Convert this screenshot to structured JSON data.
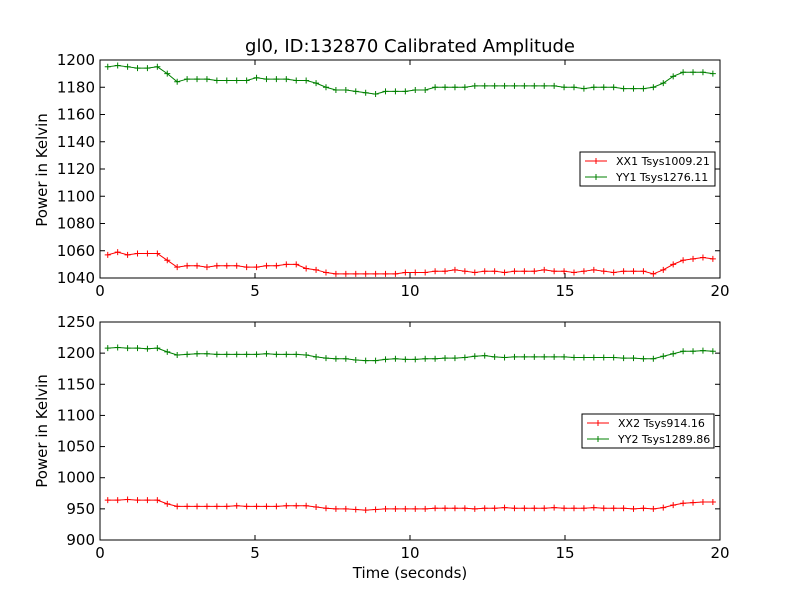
{
  "chart_data": [
    {
      "type": "line",
      "title": "gl0, ID:132870 Calibrated Amplitude",
      "xlabel": "",
      "ylabel": "Power in Kelvin",
      "xlim": [
        0,
        20
      ],
      "ylim": [
        1040,
        1200
      ],
      "xticks": [
        0,
        5,
        10,
        15,
        20
      ],
      "yticks": [
        1040,
        1060,
        1080,
        1100,
        1120,
        1140,
        1160,
        1180,
        1200
      ],
      "legend_position": "right",
      "marker": "plus",
      "x": [
        0.25,
        0.57,
        0.89,
        1.21,
        1.53,
        1.85,
        2.17,
        2.49,
        2.81,
        3.13,
        3.45,
        3.77,
        4.09,
        4.41,
        4.73,
        5.05,
        5.37,
        5.69,
        6.01,
        6.33,
        6.65,
        6.97,
        7.29,
        7.61,
        7.93,
        8.25,
        8.57,
        8.89,
        9.21,
        9.53,
        9.85,
        10.17,
        10.49,
        10.81,
        11.13,
        11.45,
        11.77,
        12.09,
        12.41,
        12.73,
        13.05,
        13.37,
        13.69,
        14.01,
        14.33,
        14.65,
        14.97,
        15.29,
        15.61,
        15.93,
        16.25,
        16.57,
        16.89,
        17.21,
        17.53,
        17.85,
        18.17,
        18.49,
        18.81,
        19.13,
        19.45,
        19.77
      ],
      "series": [
        {
          "name": "XX1 Tsys1009.21",
          "color": "#ff0000",
          "values": [
            1057,
            1059,
            1057,
            1058,
            1058,
            1058,
            1053,
            1048,
            1049,
            1049,
            1048,
            1049,
            1049,
            1049,
            1048,
            1048,
            1049,
            1049,
            1050,
            1050,
            1047,
            1046,
            1044,
            1043,
            1043,
            1043,
            1043,
            1043,
            1043,
            1043,
            1044,
            1044,
            1044,
            1045,
            1045,
            1046,
            1045,
            1044,
            1045,
            1045,
            1044,
            1045,
            1045,
            1045,
            1046,
            1045,
            1045,
            1044,
            1045,
            1046,
            1045,
            1044,
            1045,
            1045,
            1045,
            1043,
            1046,
            1050,
            1053,
            1054,
            1055,
            1054
          ]
        },
        {
          "name": "YY1 Tsys1276.11",
          "color": "#008000",
          "values": [
            1195,
            1196,
            1195,
            1194,
            1194,
            1195,
            1190,
            1184,
            1186,
            1186,
            1186,
            1185,
            1185,
            1185,
            1185,
            1187,
            1186,
            1186,
            1186,
            1185,
            1185,
            1183,
            1180,
            1178,
            1178,
            1177,
            1176,
            1175,
            1177,
            1177,
            1177,
            1178,
            1178,
            1180,
            1180,
            1180,
            1180,
            1181,
            1181,
            1181,
            1181,
            1181,
            1181,
            1181,
            1181,
            1181,
            1180,
            1180,
            1179,
            1180,
            1180,
            1180,
            1179,
            1179,
            1179,
            1180,
            1183,
            1188,
            1191,
            1191,
            1191,
            1190
          ]
        }
      ]
    },
    {
      "type": "line",
      "title": "",
      "xlabel": "Time (seconds)",
      "ylabel": "Power in Kelvin",
      "xlim": [
        0,
        20
      ],
      "ylim": [
        900,
        1250
      ],
      "xticks": [
        0,
        5,
        10,
        15,
        20
      ],
      "yticks": [
        900,
        950,
        1000,
        1050,
        1100,
        1150,
        1200,
        1250
      ],
      "legend_position": "right",
      "marker": "plus",
      "x": [
        0.25,
        0.57,
        0.89,
        1.21,
        1.53,
        1.85,
        2.17,
        2.49,
        2.81,
        3.13,
        3.45,
        3.77,
        4.09,
        4.41,
        4.73,
        5.05,
        5.37,
        5.69,
        6.01,
        6.33,
        6.65,
        6.97,
        7.29,
        7.61,
        7.93,
        8.25,
        8.57,
        8.89,
        9.21,
        9.53,
        9.85,
        10.17,
        10.49,
        10.81,
        11.13,
        11.45,
        11.77,
        12.09,
        12.41,
        12.73,
        13.05,
        13.37,
        13.69,
        14.01,
        14.33,
        14.65,
        14.97,
        15.29,
        15.61,
        15.93,
        16.25,
        16.57,
        16.89,
        17.21,
        17.53,
        17.85,
        18.17,
        18.49,
        18.81,
        19.13,
        19.45,
        19.77
      ],
      "series": [
        {
          "name": "XX2 Tsys914.16",
          "color": "#ff0000",
          "values": [
            964,
            964,
            965,
            964,
            964,
            964,
            958,
            954,
            954,
            954,
            954,
            954,
            954,
            955,
            954,
            954,
            954,
            954,
            955,
            955,
            955,
            953,
            951,
            950,
            950,
            949,
            948,
            949,
            950,
            950,
            950,
            950,
            950,
            951,
            951,
            951,
            951,
            950,
            951,
            951,
            952,
            951,
            951,
            951,
            951,
            952,
            951,
            951,
            951,
            952,
            951,
            951,
            951,
            950,
            951,
            950,
            952,
            956,
            959,
            960,
            961,
            961
          ]
        },
        {
          "name": "YY2 Tsys1289.86",
          "color": "#008000",
          "values": [
            1208,
            1209,
            1208,
            1208,
            1207,
            1208,
            1202,
            1197,
            1198,
            1199,
            1199,
            1198,
            1198,
            1198,
            1198,
            1198,
            1199,
            1198,
            1198,
            1198,
            1197,
            1194,
            1192,
            1191,
            1191,
            1189,
            1188,
            1188,
            1190,
            1191,
            1190,
            1190,
            1191,
            1191,
            1192,
            1192,
            1193,
            1195,
            1196,
            1194,
            1193,
            1194,
            1194,
            1194,
            1194,
            1194,
            1194,
            1193,
            1193,
            1193,
            1193,
            1193,
            1192,
            1192,
            1191,
            1191,
            1195,
            1199,
            1203,
            1203,
            1204,
            1203
          ]
        }
      ]
    }
  ]
}
